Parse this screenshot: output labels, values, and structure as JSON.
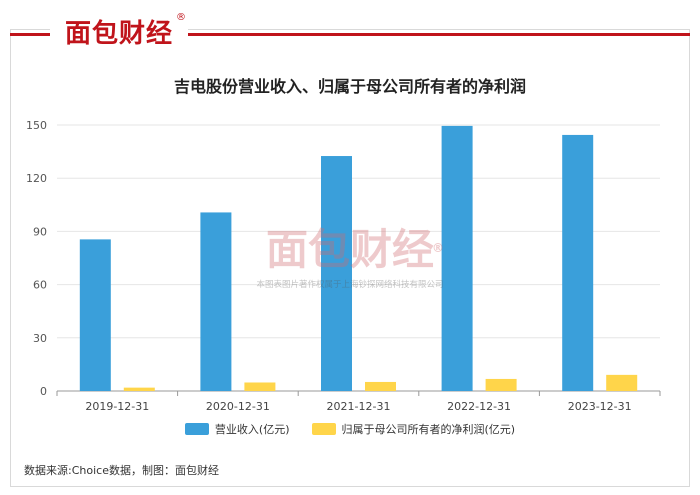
{
  "brand": {
    "logo_text": "面包财经",
    "reg_mark": "®",
    "watermark_note": "本图表图片著作权属于上海钞探网络科技有限公司"
  },
  "source_text": "数据来源:Choice数据，制图：面包财经",
  "colors": {
    "revenue": "#3a9fda",
    "profit": "#ffd54a",
    "brand_red": "#c0141b",
    "grid": "#e6e6e6",
    "axis": "#999999"
  },
  "chart_data": {
    "type": "bar",
    "title": "吉电股份营业收入、归属于母公司所有者的净利润",
    "categories": [
      "2019-12-31",
      "2020-12-31",
      "2021-12-31",
      "2022-12-31",
      "2023-12-31"
    ],
    "series": [
      {
        "name": "营业收入(亿元)",
        "values": [
          85.5,
          100.7,
          132.5,
          149.5,
          144.4
        ]
      },
      {
        "name": "归属于母公司所有者的净利润(亿元)",
        "values": [
          1.9,
          4.8,
          5.1,
          6.8,
          9.1
        ]
      }
    ],
    "yticks": [
      0,
      30,
      60,
      90,
      120,
      150
    ],
    "ylim": [
      0,
      150
    ],
    "grid": true,
    "legend_position": "bottom"
  }
}
